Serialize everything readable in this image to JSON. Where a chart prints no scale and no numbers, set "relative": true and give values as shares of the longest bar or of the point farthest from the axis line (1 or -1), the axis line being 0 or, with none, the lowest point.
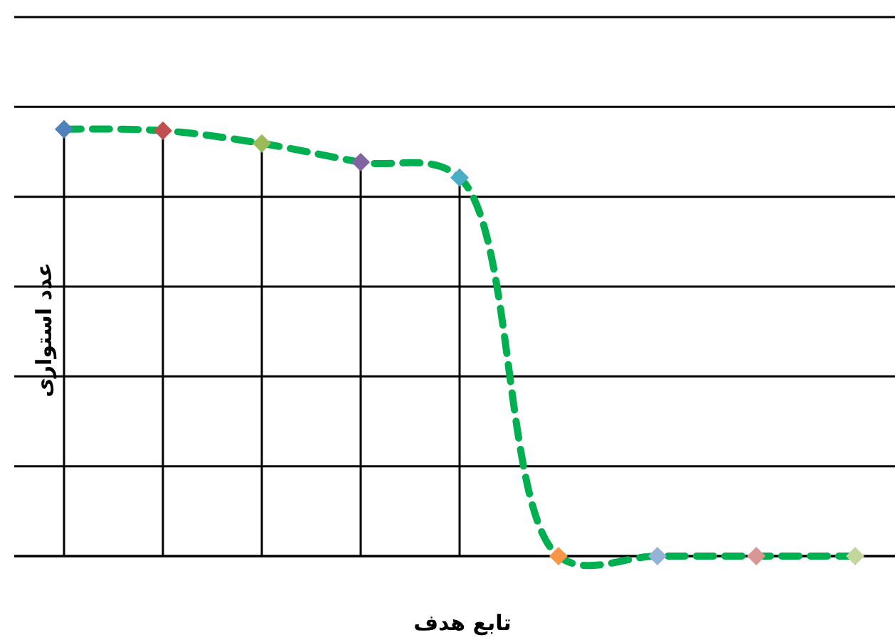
{
  "chart_data": {
    "type": "line",
    "relative": true,
    "xlabel": "تابع هدف",
    "ylabel": "عدد استواری",
    "categories": [
      null,
      null,
      null,
      null,
      null,
      null,
      null,
      null,
      null
    ],
    "series": [
      {
        "color": "#00b050",
        "values": [
          1,
          0.997,
          0.967,
          0.923,
          0.887,
          0,
          0,
          0,
          0
        ],
        "colors": [
          "#4f81bd",
          "#c0504d",
          "#9bbb59",
          "#8064a2",
          "#4bacc6",
          "#f79646",
          "#95b3d7",
          "#d99694",
          "#c3d69b"
        ]
      }
    ],
    "marker": "diamond",
    "line_style": "dashed",
    "grid": true
  }
}
